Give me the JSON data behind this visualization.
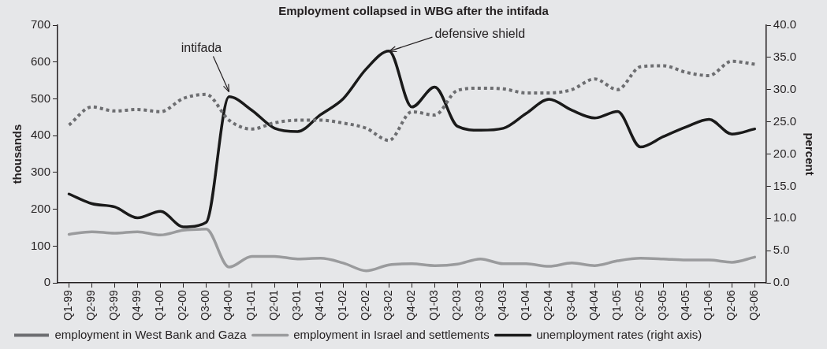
{
  "chart_data": {
    "type": "line",
    "title": "Employment collapsed in WBG after the intifada",
    "ylabel": "thousands",
    "y2label": "percent",
    "categories": [
      "Q1-99",
      "Q2-99",
      "Q3-99",
      "Q4-99",
      "Q1-00",
      "Q2-00",
      "Q3-00",
      "Q4-00",
      "Q1-01",
      "Q2-01",
      "Q3-01",
      "Q4-01",
      "Q1-02",
      "Q2-02",
      "Q3-02",
      "Q4-02",
      "Q1-03",
      "Q2-03",
      "Q3-03",
      "Q4-03",
      "Q1-04",
      "Q2-04",
      "Q3-04",
      "Q4-04",
      "Q1-05",
      "Q2-05",
      "Q3-05",
      "Q4-05",
      "Q1-06",
      "Q2-06",
      "Q3-06"
    ],
    "series": [
      {
        "name": "employment in West Bank and Gaza",
        "color": "#6d6e71",
        "line_style": "dotted",
        "values": [
          429,
          478,
          467,
          471,
          465,
          501,
          512,
          442,
          418,
          435,
          442,
          442,
          434,
          420,
          387,
          465,
          456,
          523,
          529,
          527,
          516,
          516,
          525,
          554,
          525,
          587,
          590,
          572,
          563,
          602,
          594
        ]
      },
      {
        "name": "employment in Israel and settlements",
        "color": "#9a9b9d",
        "line_style": "solid",
        "values": [
          132,
          139,
          135,
          139,
          130,
          143,
          146,
          43,
          72,
          72,
          65,
          67,
          54,
          33,
          49,
          52,
          47,
          51,
          65,
          52,
          52,
          45,
          54,
          47,
          60,
          67,
          65,
          62,
          62,
          56,
          70
        ]
      },
      {
        "name": "unemployment rates (right axis)",
        "color": "#1a1a1a",
        "line_style": "solid",
        "axis": "y2",
        "values": [
          13.8,
          12.3,
          11.8,
          10.1,
          11.1,
          8.7,
          9.4,
          28.9,
          26.8,
          24.0,
          23.5,
          26.1,
          28.6,
          33.2,
          36.0,
          27.3,
          30.4,
          24.3,
          23.7,
          24.0,
          26.3,
          28.5,
          26.8,
          25.6,
          26.6,
          21.1,
          22.7,
          24.2,
          25.4,
          23.1,
          23.9
        ]
      }
    ],
    "ylim": [
      0,
      700
    ],
    "yticks": [
      0,
      100,
      200,
      300,
      400,
      500,
      600,
      700
    ],
    "y2lim": [
      0,
      40
    ],
    "y2ticks": [
      {
        "value": 0,
        "label": "0.0"
      },
      {
        "value": 5,
        "label": "5.0"
      },
      {
        "value": 10,
        "label": "10.0"
      },
      {
        "value": 15,
        "label": "15.0"
      },
      {
        "value": 20,
        "label": "20.0"
      },
      {
        "value": 25,
        "label": "25.0"
      },
      {
        "value": 30,
        "label": "30.0"
      },
      {
        "value": 35,
        "label": "35.0"
      },
      {
        "value": 40,
        "label": "40.0"
      }
    ],
    "annotations": [
      {
        "text": "intifada",
        "x": "Q4-00",
        "y": 519
      },
      {
        "text": "defensive shield",
        "x": "Q3-02",
        "y": 629
      }
    ],
    "grid": false,
    "legend": "bottom",
    "marker": "none"
  }
}
